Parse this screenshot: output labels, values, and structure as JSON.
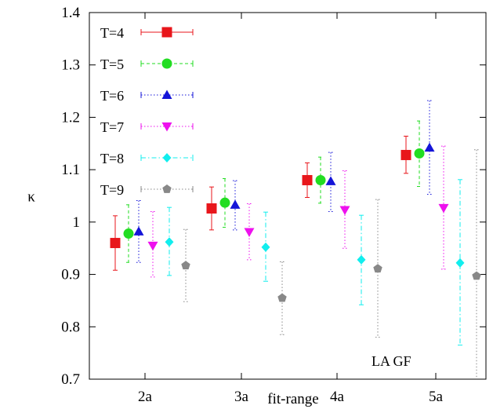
{
  "chart_data": {
    "type": "scatter",
    "xlabel": "fit-range",
    "ylabel": "κ",
    "ylim": [
      0.7,
      1.4
    ],
    "yticks": [
      "0.7",
      "0.8",
      "0.9",
      "1",
      "1.1",
      "1.2",
      "1.3",
      "1.4"
    ],
    "categories": [
      "2a",
      "3a",
      "4a",
      "5a"
    ],
    "grid": false,
    "legend_position": "top-left",
    "annotation": "LA GF",
    "series": [
      {
        "name": "T=4",
        "color": "#e8161b",
        "marker": "square",
        "linestyle": "solid",
        "values": [
          0.96,
          1.026,
          1.08,
          1.128
        ],
        "err_low": [
          0.908,
          0.985,
          1.047,
          1.093
        ],
        "err_high": [
          1.012,
          1.067,
          1.113,
          1.164
        ]
      },
      {
        "name": "T=5",
        "color": "#22dd22",
        "marker": "circle",
        "linestyle": "dashed",
        "values": [
          0.978,
          1.037,
          1.08,
          1.131
        ],
        "err_low": [
          0.923,
          0.99,
          1.036,
          1.068
        ],
        "err_high": [
          1.033,
          1.083,
          1.124,
          1.193
        ]
      },
      {
        "name": "T=6",
        "color": "#1515d8",
        "marker": "triangle-up",
        "linestyle": "dotted",
        "values": [
          0.982,
          1.033,
          1.078,
          1.142
        ],
        "err_low": [
          0.923,
          0.985,
          1.02,
          1.053
        ],
        "err_high": [
          1.041,
          1.079,
          1.133,
          1.232
        ]
      },
      {
        "name": "T=7",
        "color": "#ee11ee",
        "marker": "triangle-down",
        "linestyle": "dotted",
        "values": [
          0.955,
          0.981,
          1.023,
          1.027
        ],
        "err_low": [
          0.895,
          0.928,
          0.95,
          0.91
        ],
        "err_high": [
          1.02,
          1.035,
          1.098,
          1.145
        ]
      },
      {
        "name": "T=8",
        "color": "#11eeee",
        "marker": "diamond",
        "linestyle": "dashdot",
        "values": [
          0.962,
          0.952,
          0.928,
          0.922
        ],
        "err_low": [
          0.898,
          0.887,
          0.842,
          0.765
        ],
        "err_high": [
          1.028,
          1.019,
          1.013,
          1.081
        ]
      },
      {
        "name": "T=9",
        "color": "#888888",
        "marker": "pentagon",
        "linestyle": "dotted",
        "values": [
          0.917,
          0.855,
          0.911,
          0.897
        ],
        "err_low": [
          0.848,
          0.785,
          0.78,
          0.7
        ],
        "err_high": [
          0.986,
          0.924,
          1.043,
          1.138
        ]
      }
    ]
  }
}
